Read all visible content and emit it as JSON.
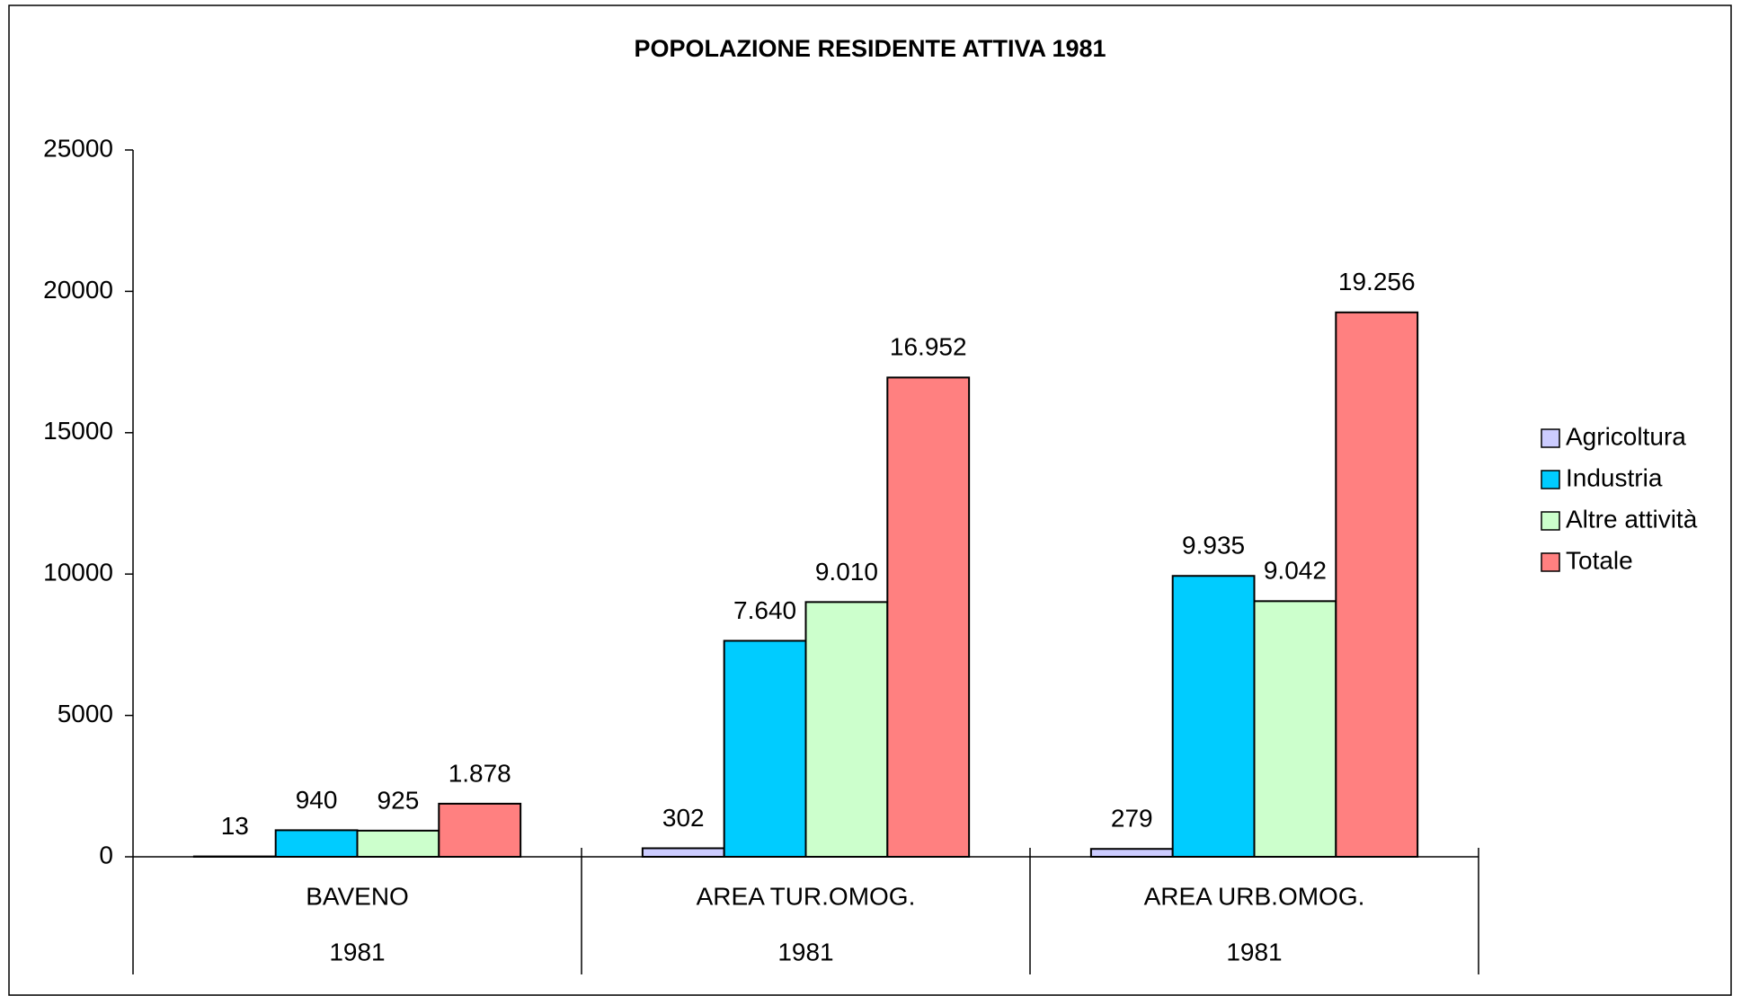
{
  "chart_data": {
    "type": "bar",
    "title": "POPOLAZIONE RESIDENTE ATTIVA 1981",
    "categories": [
      "BAVENO",
      "AREA TUR.OMOG.",
      "AREA URB.OMOG."
    ],
    "category_years": [
      "1981",
      "1981",
      "1981"
    ],
    "series": [
      {
        "name": "Agricoltura",
        "color": "#ccccff",
        "values": [
          13,
          302,
          279
        ],
        "value_labels": [
          "13",
          "302",
          "279"
        ]
      },
      {
        "name": "Industria",
        "color": "#00ccff",
        "values": [
          940,
          7640,
          9935
        ],
        "value_labels": [
          "940",
          "7.640",
          "9.935"
        ]
      },
      {
        "name": "Altre attività",
        "color": "#ccffcc",
        "values": [
          925,
          9010,
          9042
        ],
        "value_labels": [
          "925",
          "9.010",
          "9.042"
        ]
      },
      {
        "name": "Totale",
        "color": "#ff8080",
        "values": [
          1878,
          16952,
          19256
        ],
        "value_labels": [
          "1.878",
          "16.952",
          "19.256"
        ]
      }
    ],
    "ylim": [
      0,
      25000
    ],
    "yticks": [
      0,
      5000,
      10000,
      15000,
      20000,
      25000
    ],
    "grid": false,
    "legend": "right"
  }
}
